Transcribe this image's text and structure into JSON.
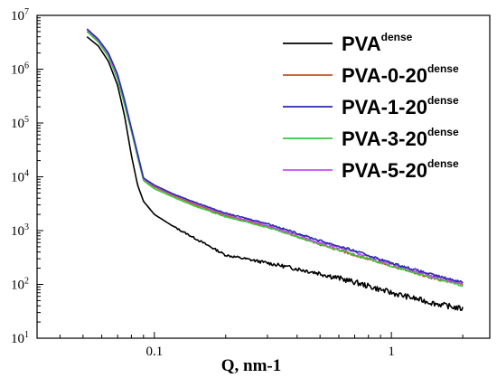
{
  "chart_data": {
    "type": "line",
    "title": "",
    "xlabel": "Q, nm-1",
    "ylabel": "",
    "xscale": "log",
    "yscale": "log",
    "xlim": [
      0.032,
      2.6
    ],
    "ylim": [
      10,
      10000000
    ],
    "x_ticks": [
      {
        "value": 0.1,
        "label": "0.1"
      },
      {
        "value": 1,
        "label": "1"
      }
    ],
    "y_ticks": [
      {
        "value": 10,
        "base": "10",
        "exp": "1"
      },
      {
        "value": 100,
        "base": "10",
        "exp": "2"
      },
      {
        "value": 1000,
        "base": "10",
        "exp": "3"
      },
      {
        "value": 10000,
        "base": "10",
        "exp": "4"
      },
      {
        "value": 100000,
        "base": "10",
        "exp": "5"
      },
      {
        "value": 1000000,
        "base": "10",
        "exp": "6"
      },
      {
        "value": 10000000,
        "base": "10",
        "exp": "7"
      }
    ],
    "grid": false,
    "legend_position": "top-right",
    "series": [
      {
        "name": "PVA",
        "name_sup": "dense",
        "color": "#000000",
        "noise": 0.1,
        "x": [
          0.052,
          0.058,
          0.064,
          0.07,
          0.075,
          0.08,
          0.085,
          0.09,
          0.1,
          0.12,
          0.15,
          0.2,
          0.3,
          0.5,
          0.7,
          1.0,
          1.5,
          2.0
        ],
        "y": [
          4000000,
          2700000,
          1400000,
          500000,
          130000,
          25000,
          7000,
          3500,
          2000,
          1200,
          700,
          350,
          250,
          160,
          110,
          70,
          45,
          35
        ]
      },
      {
        "name": "PVA-0-20",
        "name_sup": "dense",
        "color": "#b85a2a",
        "noise": 0.04,
        "x": [
          0.052,
          0.058,
          0.064,
          0.07,
          0.075,
          0.08,
          0.085,
          0.09,
          0.1,
          0.12,
          0.15,
          0.2,
          0.3,
          0.5,
          0.7,
          1.0,
          1.5,
          2.0
        ],
        "y": [
          5000000,
          3300000,
          1800000,
          700000,
          230000,
          75000,
          25000,
          9000,
          6500,
          4500,
          3000,
          1900,
          1200,
          550,
          350,
          220,
          130,
          100
        ]
      },
      {
        "name": "PVA-1-20",
        "name_sup": "dense",
        "color": "#2a2ab8",
        "noise": 0.04,
        "x": [
          0.052,
          0.058,
          0.064,
          0.07,
          0.075,
          0.08,
          0.085,
          0.09,
          0.1,
          0.12,
          0.15,
          0.2,
          0.3,
          0.5,
          0.7,
          1.0,
          1.5,
          2.0
        ],
        "y": [
          5600000,
          3600000,
          2000000,
          800000,
          260000,
          80000,
          27000,
          9500,
          7000,
          4800,
          3300,
          2100,
          1350,
          650,
          420,
          250,
          150,
          110
        ]
      },
      {
        "name": "PVA-3-20",
        "name_sup": "dense",
        "color": "#3cc83c",
        "noise": 0.04,
        "x": [
          0.052,
          0.058,
          0.064,
          0.07,
          0.075,
          0.08,
          0.085,
          0.09,
          0.1,
          0.12,
          0.15,
          0.2,
          0.3,
          0.5,
          0.7,
          1.0,
          1.5,
          2.0
        ],
        "y": [
          5000000,
          3200000,
          1700000,
          650000,
          210000,
          70000,
          23000,
          8500,
          6000,
          4200,
          2800,
          1800,
          1150,
          560,
          360,
          220,
          130,
          95
        ]
      },
      {
        "name": "PVA-5-20",
        "name_sup": "dense",
        "color": "#c84ef0",
        "noise": 0.04,
        "x": [
          0.052,
          0.058,
          0.064,
          0.07,
          0.075,
          0.08,
          0.085,
          0.09,
          0.1,
          0.12,
          0.15,
          0.2,
          0.3,
          0.5,
          0.7,
          1.0,
          1.5,
          2.0
        ],
        "y": [
          5400000,
          3500000,
          1900000,
          750000,
          250000,
          78000,
          26000,
          9200,
          6800,
          4700,
          3200,
          2000,
          1250,
          600,
          400,
          240,
          140,
          105
        ]
      }
    ]
  }
}
